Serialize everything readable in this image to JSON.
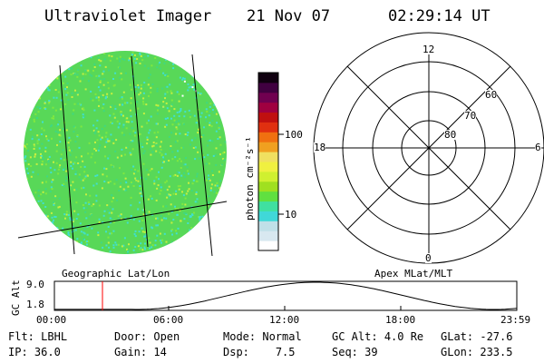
{
  "header": {
    "title": "Ultraviolet Imager",
    "date": "21 Nov 07",
    "time": "02:29:14 UT"
  },
  "geo_grid_label": "Geographic Lat/Lon",
  "apex_grid_label": "Apex MLat/MLT",
  "colorbar": {
    "unit_label": "photon cm⁻²s⁻¹",
    "ticks": [
      "100",
      "10"
    ],
    "colors": [
      "#ffffff",
      "#d8e8f0",
      "#c0e0e8",
      "#40d8d8",
      "#40e0a0",
      "#60e040",
      "#a0e020",
      "#d0f030",
      "#f0f040",
      "#f0e060",
      "#f0a020",
      "#f07010",
      "#e03010",
      "#c01010",
      "#a00040",
      "#700050",
      "#400040",
      "#100010"
    ]
  },
  "polar_plot": {
    "mlt_labels": [
      "12",
      "18",
      "6",
      "0"
    ],
    "mlat_labels": [
      "60",
      "70",
      "80"
    ]
  },
  "altitude_plot": {
    "ylabel": "GC Alt",
    "yticks": [
      "9.0",
      "1.8"
    ],
    "xticks": [
      "00:00",
      "06:00",
      "12:00",
      "18:00",
      "23:59"
    ],
    "marker_color": "#ff0000"
  },
  "info": {
    "row1": [
      {
        "key": "Flt:",
        "value": "LBHL"
      },
      {
        "key": "Door:",
        "value": "Open"
      },
      {
        "key": "Mode:",
        "value": "Normal"
      },
      {
        "key": "GC Alt:",
        "value": "4.0 Re"
      },
      {
        "key": "GLat:",
        "value": "-27.6"
      }
    ],
    "row2": [
      {
        "key": "IP:",
        "value": "36.0"
      },
      {
        "key": "Gain:",
        "value": "14"
      },
      {
        "key": "Dsp:",
        "value": "7.5"
      },
      {
        "key": "Seq:",
        "value": "39"
      },
      {
        "key": "GLon:",
        "value": "233.5"
      }
    ]
  },
  "colors": {
    "disk_green": "#58d858",
    "disk_cyan": "#40e0d0",
    "disk_yellow": "#c8f040"
  }
}
